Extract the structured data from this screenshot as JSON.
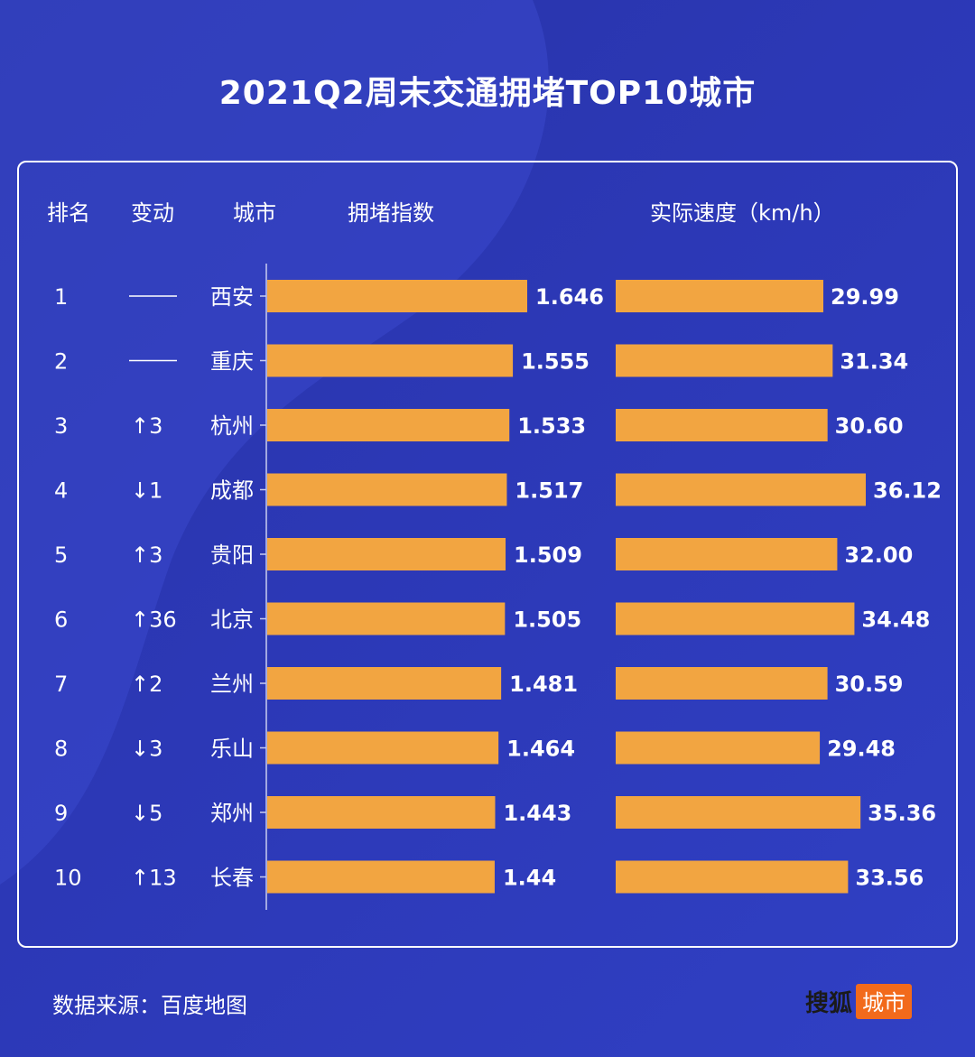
{
  "title": "2021Q2周末交通拥堵TOP10城市",
  "headers": {
    "rank": "排名",
    "change": "变动",
    "city": "城市",
    "index": "拥堵指数",
    "speed": "实际速度（km/h）"
  },
  "source": "数据来源：百度地图",
  "brand": {
    "main": "搜狐",
    "tag": "城市"
  },
  "colors": {
    "background": "#2c38b6",
    "bar": "#f2a541",
    "brand_tag": "#f26a1b"
  },
  "chart_data": {
    "type": "bar",
    "orientation": "horizontal",
    "title": "2021Q2周末交通拥堵TOP10城市",
    "categories": [
      "西安",
      "重庆",
      "杭州",
      "成都",
      "贵阳",
      "北京",
      "兰州",
      "乐山",
      "郑州",
      "长春"
    ],
    "ranks": [
      "1",
      "2",
      "3",
      "4",
      "5",
      "6",
      "7",
      "8",
      "9",
      "10"
    ],
    "changes": [
      "——",
      "——",
      "↑3",
      "↓1",
      "↑3",
      "↑36",
      "↑2",
      "↓3",
      "↓5",
      "↑13"
    ],
    "series": [
      {
        "name": "拥堵指数",
        "values": [
          1.646,
          1.555,
          1.533,
          1.517,
          1.509,
          1.505,
          1.481,
          1.464,
          1.443,
          1.44
        ],
        "labels": [
          "1.646",
          "1.555",
          "1.533",
          "1.517",
          "1.509",
          "1.505",
          "1.481",
          "1.464",
          "1.443",
          "1.44"
        ]
      },
      {
        "name": "实际速度（km/h）",
        "values": [
          29.99,
          31.34,
          30.6,
          36.12,
          32.0,
          34.48,
          30.59,
          29.48,
          35.36,
          33.56
        ],
        "labels": [
          "29.99",
          "31.34",
          "30.60",
          "36.12",
          "32.00",
          "34.48",
          "30.59",
          "29.48",
          "35.36",
          "33.56"
        ]
      }
    ],
    "grid": false,
    "legend": "none"
  }
}
